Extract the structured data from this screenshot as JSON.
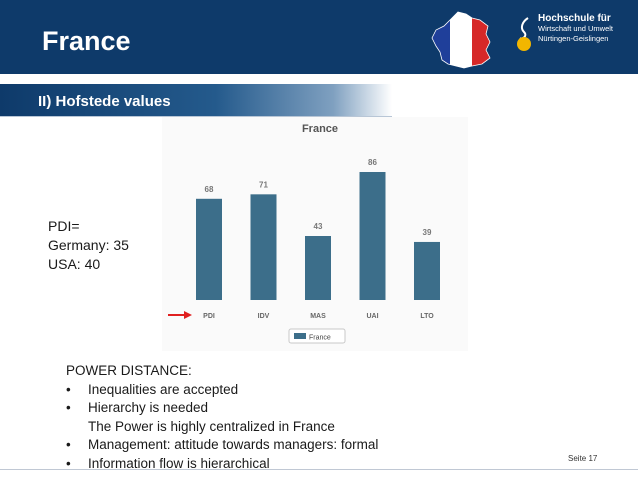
{
  "slide": {
    "title": "France",
    "subtitle": "II) Hofstede values",
    "page_number": "Seite 17"
  },
  "logo": {
    "line1": "Hochschule für",
    "line2": "Wirtschaft und Umwelt",
    "line3": "Nürtingen-Geislingen"
  },
  "pdi_note": {
    "label": "PDI=",
    "germany": "Germany: 35",
    "usa": "USA: 40"
  },
  "body_text": {
    "heading": "POWER DISTANCE:",
    "bullet_symbol": "•",
    "item1": "Inequalities are accepted",
    "item2": "Hierarchy is needed",
    "item2_sub": "The Power is highly centralized in France",
    "item3": "Management: attitude towards managers: formal",
    "item4": "Information flow is hierarchical"
  },
  "colors": {
    "header": "#0e3a6a",
    "bar": "#3c6e8a",
    "arrow": "#e02020",
    "flag_blue": "#1f3f9a",
    "flag_red": "#d62828"
  },
  "chart_data": {
    "type": "bar",
    "title": "France",
    "categories": [
      "PDI",
      "IDV",
      "MAS",
      "UAI",
      "LTO"
    ],
    "series": [
      {
        "name": "France",
        "values": [
          68,
          71,
          43,
          86,
          39
        ]
      }
    ],
    "ylim": [
      0,
      100
    ],
    "grid": false,
    "legend": "bottom-center",
    "data_labels": true,
    "highlight": "PDI"
  }
}
